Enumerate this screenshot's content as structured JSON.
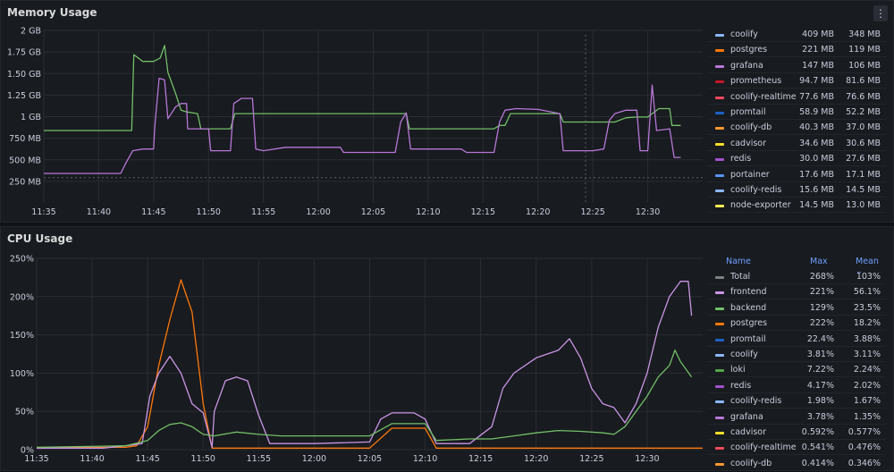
{
  "colors": {
    "green": "#73bf69",
    "purple": "#b877d9",
    "orange": "#ff780a",
    "lightblue": "#8ab8ff",
    "darkred": "#c4162a",
    "red": "#f2495c",
    "darkblue": "#1f60c4",
    "yellow": "#fade2a",
    "blue": "#5794f2",
    "gray": "#808080"
  },
  "memory": {
    "title": "Memory Usage",
    "menu_icon": "⋮",
    "legend": [
      {
        "name": "coolify",
        "v1": "409 MB",
        "v2": "348 MB",
        "color": "#8ab8ff"
      },
      {
        "name": "postgres",
        "v1": "221 MB",
        "v2": "119 MB",
        "color": "#ff780a"
      },
      {
        "name": "grafana",
        "v1": "147 MB",
        "v2": "106 MB",
        "color": "#b877d9"
      },
      {
        "name": "prometheus",
        "v1": "94.7 MB",
        "v2": "81.6 MB",
        "color": "#c4162a"
      },
      {
        "name": "coolify-realtime",
        "v1": "77.6 MB",
        "v2": "76.6 MB",
        "color": "#f2495c"
      },
      {
        "name": "promtail",
        "v1": "58.9 MB",
        "v2": "52.2 MB",
        "color": "#1f60c4"
      },
      {
        "name": "coolify-db",
        "v1": "40.3 MB",
        "v2": "37.0 MB",
        "color": "#ff9830"
      },
      {
        "name": "cadvisor",
        "v1": "34.6 MB",
        "v2": "30.6 MB",
        "color": "#fade2a"
      },
      {
        "name": "redis",
        "v1": "30.0 MB",
        "v2": "27.6 MB",
        "color": "#a352cc"
      },
      {
        "name": "portainer",
        "v1": "17.6 MB",
        "v2": "17.1 MB",
        "color": "#5794f2"
      },
      {
        "name": "coolify-redis",
        "v1": "15.6 MB",
        "v2": "14.5 MB",
        "color": "#8ab8ff"
      },
      {
        "name": "node-exporter",
        "v1": "14.5 MB",
        "v2": "13.0 MB",
        "color": "#ffee52"
      }
    ]
  },
  "cpu": {
    "title": "CPU Usage",
    "legend_header": {
      "name": "Name",
      "max": "Max",
      "mean": "Mean ⌄"
    },
    "legend": [
      {
        "name": "Total",
        "v1": "268%",
        "v2": "103%",
        "color": "#808080"
      },
      {
        "name": "frontend",
        "v1": "221%",
        "v2": "56.1%",
        "color": "#ca95e5"
      },
      {
        "name": "backend",
        "v1": "129%",
        "v2": "23.5%",
        "color": "#73bf69"
      },
      {
        "name": "postgres",
        "v1": "222%",
        "v2": "18.2%",
        "color": "#ff780a"
      },
      {
        "name": "promtail",
        "v1": "22.4%",
        "v2": "3.88%",
        "color": "#1f60c4"
      },
      {
        "name": "coolify",
        "v1": "3.81%",
        "v2": "3.11%",
        "color": "#8ab8ff"
      },
      {
        "name": "loki",
        "v1": "7.22%",
        "v2": "2.24%",
        "color": "#56a64b"
      },
      {
        "name": "redis",
        "v1": "4.17%",
        "v2": "2.02%",
        "color": "#a352cc"
      },
      {
        "name": "coolify-redis",
        "v1": "1.98%",
        "v2": "1.67%",
        "color": "#8ab8ff"
      },
      {
        "name": "grafana",
        "v1": "3.78%",
        "v2": "1.35%",
        "color": "#b877d9"
      },
      {
        "name": "cadvisor",
        "v1": "0.592%",
        "v2": "0.577%",
        "color": "#fade2a"
      },
      {
        "name": "coolify-realtime",
        "v1": "0.541%",
        "v2": "0.476%",
        "color": "#f2495c"
      },
      {
        "name": "coolify-db",
        "v1": "0.414%",
        "v2": "0.346%",
        "color": "#ff9830"
      }
    ]
  },
  "chart_data": [
    {
      "type": "line",
      "title": "Memory Usage",
      "x_ticks": [
        "11:35",
        "11:40",
        "11:45",
        "11:50",
        "11:55",
        "12:00",
        "12:05",
        "12:10",
        "12:15",
        "12:20",
        "12:25",
        "12:30"
      ],
      "y_ticks": [
        "250 MB",
        "500 MB",
        "750 MB",
        "1 GB",
        "1.25 GB",
        "1.50 GB",
        "1.75 GB",
        "2 GB"
      ],
      "ylim_mb": [
        0,
        2048
      ],
      "x_range_min": [
        0,
        60
      ],
      "series": [
        {
          "color": "#73bf69",
          "points": [
            [
              0,
              860
            ],
            [
              7,
              860
            ],
            [
              8,
              860
            ],
            [
              8.2,
              1760
            ],
            [
              9,
              1680
            ],
            [
              10,
              1680
            ],
            [
              10.6,
              1720
            ],
            [
              11,
              1870
            ],
            [
              11.3,
              1550
            ],
            [
              12,
              1300
            ],
            [
              12.5,
              1100
            ],
            [
              13,
              1080
            ],
            [
              14,
              1060
            ],
            [
              14.3,
              880
            ],
            [
              15,
              880
            ],
            [
              17,
              880
            ],
            [
              17.4,
              1060
            ],
            [
              20,
              1060
            ],
            [
              25,
              1060
            ],
            [
              30,
              1060
            ],
            [
              33,
              1060
            ],
            [
              33.3,
              880
            ],
            [
              36,
              880
            ],
            [
              40,
              880
            ],
            [
              41,
              880
            ],
            [
              41.5,
              920
            ],
            [
              42,
              920
            ],
            [
              42.5,
              1060
            ],
            [
              44,
              1060
            ],
            [
              47,
              1060
            ],
            [
              47.3,
              960
            ],
            [
              52,
              960
            ],
            [
              53,
              1010
            ],
            [
              54,
              1020
            ],
            [
              55,
              1020
            ],
            [
              56,
              1120
            ],
            [
              57,
              1120
            ],
            [
              57.2,
              920
            ],
            [
              58,
              920
            ]
          ]
        },
        {
          "color": "#b877d9",
          "points": [
            [
              0,
              350
            ],
            [
              7,
              350
            ],
            [
              7.5,
              480
            ],
            [
              8.1,
              620
            ],
            [
              9,
              640
            ],
            [
              10,
              640
            ],
            [
              10.1,
              900
            ],
            [
              10.5,
              1480
            ],
            [
              11,
              1460
            ],
            [
              11.3,
              1000
            ],
            [
              12,
              1140
            ],
            [
              12.5,
              1180
            ],
            [
              13,
              1180
            ],
            [
              13.1,
              880
            ],
            [
              14,
              880
            ],
            [
              15,
              880
            ],
            [
              15.2,
              620
            ],
            [
              17,
              620
            ],
            [
              17.3,
              1180
            ],
            [
              18,
              1240
            ],
            [
              19,
              1240
            ],
            [
              19.3,
              640
            ],
            [
              20,
              620
            ],
            [
              22,
              660
            ],
            [
              25,
              660
            ],
            [
              26,
              660
            ],
            [
              27,
              660
            ],
            [
              27.3,
              600
            ],
            [
              30,
              600
            ],
            [
              32,
              600
            ],
            [
              32.5,
              960
            ],
            [
              33,
              1070
            ],
            [
              33.4,
              640
            ],
            [
              36,
              640
            ],
            [
              38,
              640
            ],
            [
              38.5,
              600
            ],
            [
              40,
              600
            ],
            [
              41,
              600
            ],
            [
              41.5,
              960
            ],
            [
              42,
              1100
            ],
            [
              43,
              1120
            ],
            [
              45,
              1110
            ],
            [
              47,
              1060
            ],
            [
              47.3,
              620
            ],
            [
              50,
              620
            ],
            [
              51,
              640
            ],
            [
              51.5,
              980
            ],
            [
              52,
              1060
            ],
            [
              53,
              1100
            ],
            [
              54,
              1100
            ],
            [
              54.3,
              620
            ],
            [
              55,
              620
            ],
            [
              55.4,
              1400
            ],
            [
              55.8,
              860
            ],
            [
              57,
              880
            ],
            [
              57.4,
              540
            ],
            [
              58,
              540
            ]
          ]
        }
      ]
    },
    {
      "type": "line",
      "title": "CPU Usage",
      "x_ticks": [
        "11:35",
        "11:40",
        "11:45",
        "11:50",
        "11:55",
        "12:00",
        "12:05",
        "12:10",
        "12:15",
        "12:20",
        "12:25",
        "12:30"
      ],
      "y_ticks": [
        "0%",
        "50%",
        "100%",
        "150%",
        "200%",
        "250%"
      ],
      "ylim": [
        0,
        250
      ],
      "x_range_min": [
        0,
        60
      ],
      "series": [
        {
          "color": "#ff780a",
          "points": [
            [
              0,
              3
            ],
            [
              8,
              3
            ],
            [
              9,
              5
            ],
            [
              10,
              30
            ],
            [
              11,
              110
            ],
            [
              12,
              170
            ],
            [
              13,
              222
            ],
            [
              14,
              180
            ],
            [
              15,
              60
            ],
            [
              15.8,
              2
            ],
            [
              20,
              2
            ],
            [
              30,
              2
            ],
            [
              32,
              28
            ],
            [
              35,
              28
            ],
            [
              36,
              2
            ],
            [
              60,
              2
            ]
          ]
        },
        {
          "color": "#ca95e5",
          "points": [
            [
              0,
              2
            ],
            [
              6,
              2
            ],
            [
              8,
              5
            ],
            [
              9.5,
              8
            ],
            [
              10.2,
              70
            ],
            [
              11,
              100
            ],
            [
              12,
              122
            ],
            [
              13,
              100
            ],
            [
              14,
              60
            ],
            [
              15,
              48
            ],
            [
              15.8,
              3
            ],
            [
              16,
              50
            ],
            [
              17,
              90
            ],
            [
              18,
              95
            ],
            [
              19,
              90
            ],
            [
              20,
              45
            ],
            [
              21,
              8
            ],
            [
              25,
              8
            ],
            [
              30,
              10
            ],
            [
              31,
              40
            ],
            [
              32,
              48
            ],
            [
              34,
              48
            ],
            [
              35,
              40
            ],
            [
              36,
              8
            ],
            [
              39,
              8
            ],
            [
              41,
              30
            ],
            [
              42,
              80
            ],
            [
              43,
              100
            ],
            [
              45,
              120
            ],
            [
              47,
              130
            ],
            [
              48,
              145
            ],
            [
              49,
              120
            ],
            [
              50,
              80
            ],
            [
              51,
              60
            ],
            [
              52,
              55
            ],
            [
              53,
              35
            ],
            [
              54,
              60
            ],
            [
              55,
              100
            ],
            [
              56,
              160
            ],
            [
              57,
              200
            ],
            [
              58,
              220
            ],
            [
              58.7,
              220
            ],
            [
              59,
              175
            ]
          ]
        },
        {
          "color": "#73bf69",
          "points": [
            [
              0,
              3
            ],
            [
              8,
              5
            ],
            [
              10,
              12
            ],
            [
              11,
              25
            ],
            [
              12,
              33
            ],
            [
              13,
              35
            ],
            [
              14,
              30
            ],
            [
              15,
              20
            ],
            [
              16,
              18
            ],
            [
              18,
              23
            ],
            [
              20,
              20
            ],
            [
              22,
              18
            ],
            [
              25,
              18
            ],
            [
              30,
              18
            ],
            [
              32,
              34
            ],
            [
              35,
              34
            ],
            [
              36,
              12
            ],
            [
              39,
              14
            ],
            [
              41,
              14
            ],
            [
              43,
              18
            ],
            [
              45,
              22
            ],
            [
              47,
              25
            ],
            [
              49,
              24
            ],
            [
              51,
              22
            ],
            [
              52,
              20
            ],
            [
              53,
              30
            ],
            [
              54,
              50
            ],
            [
              55,
              70
            ],
            [
              56,
              95
            ],
            [
              57,
              110
            ],
            [
              57.5,
              130
            ],
            [
              58,
              115
            ],
            [
              59,
              95
            ]
          ]
        }
      ]
    }
  ]
}
